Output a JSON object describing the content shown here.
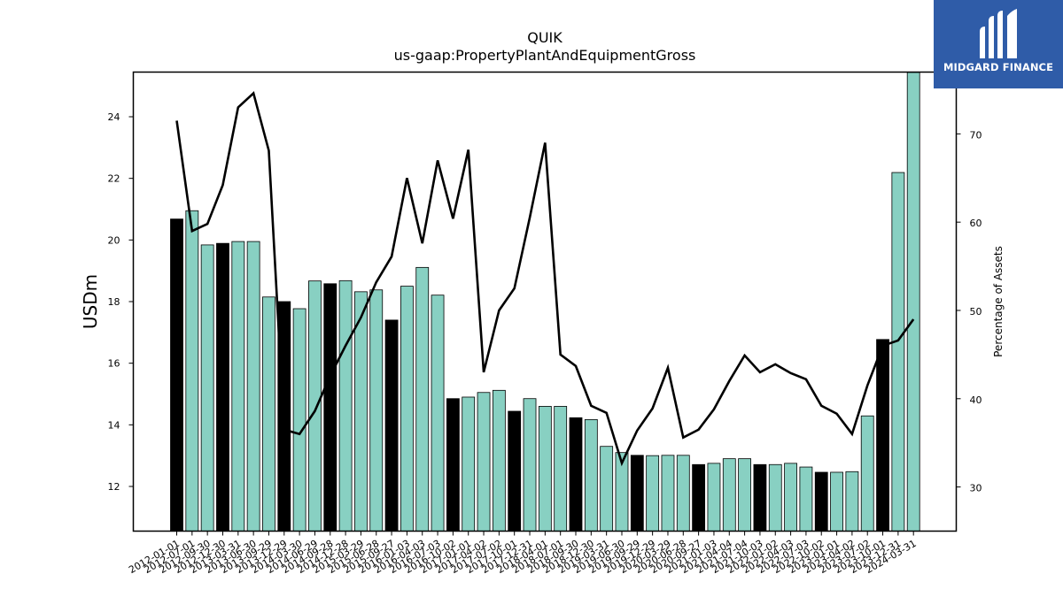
{
  "chart_data": {
    "type": "bar",
    "title": "QUIK",
    "subtitle": "us-gaap:PropertyPlantAndEquipmentGross",
    "ylabel": "USDm",
    "y2label": "Percentage of Assets",
    "ylim": [
      10.55,
      25.45
    ],
    "y2lim": [
      25,
      77
    ],
    "yticks": [
      12,
      14,
      16,
      18,
      20,
      22,
      24
    ],
    "y2ticks": [
      30,
      40,
      50,
      60,
      70
    ],
    "categories": [
      "2012-01-01",
      "2012-07-01",
      "2012-09-30",
      "2012-12-30",
      "2013-03-31",
      "2013-06-30",
      "2013-09-29",
      "2013-12-29",
      "2014-03-30",
      "2014-06-29",
      "2014-09-28",
      "2014-12-28",
      "2015-03-29",
      "2015-06-28",
      "2015-09-27",
      "2016-01-03",
      "2016-04-03",
      "2016-07-03",
      "2016-10-02",
      "2017-01-01",
      "2017-04-02",
      "2017-07-02",
      "2017-10-01",
      "2017-12-31",
      "2018-04-01",
      "2018-07-01",
      "2018-09-30",
      "2018-12-30",
      "2019-03-31",
      "2019-06-30",
      "2019-09-29",
      "2019-12-29",
      "2020-03-29",
      "2020-06-28",
      "2020-09-27",
      "2021-01-03",
      "2021-04-04",
      "2021-07-04",
      "2021-10-03",
      "2022-01-02",
      "2022-04-03",
      "2022-07-03",
      "2022-10-02",
      "2023-01-01",
      "2023-04-02",
      "2023-07-02",
      "2023-10-01",
      "2023-12-31",
      "2024-03-31"
    ],
    "series": [
      {
        "values": [
          20.68,
          20.95,
          19.84,
          19.89,
          19.95,
          19.95,
          18.15,
          18.0,
          17.77,
          18.67,
          18.58,
          18.68,
          18.32,
          18.38,
          17.4,
          18.5,
          19.11,
          18.21,
          14.85,
          14.9,
          15.05,
          15.12,
          14.44,
          14.85,
          14.6,
          14.6,
          14.23,
          14.17,
          13.3,
          13.1,
          13.01,
          13.0,
          13.01,
          13.01,
          12.71,
          12.75,
          12.9,
          12.9,
          12.71,
          12.71,
          12.75,
          12.63,
          12.46,
          12.46,
          12.48,
          14.29,
          16.77,
          22.19,
          25.44
        ]
      },
      {
        "values": [
          71.5,
          59.0,
          59.8,
          64.2,
          73.0,
          74.6,
          68.1,
          36.5,
          36.0,
          38.6,
          42.6,
          46.0,
          49.2,
          53.2,
          56.1,
          65.0,
          57.6,
          67.0,
          60.4,
          68.2,
          43.0,
          50.0,
          52.5,
          60.5,
          69.0,
          45.0,
          43.7,
          39.2,
          38.4,
          32.7,
          36.4,
          38.9,
          43.5,
          35.6,
          36.5,
          38.8,
          42.0,
          44.9,
          43.0,
          43.9,
          42.9,
          42.2,
          39.2,
          38.3,
          36.0,
          41.5,
          46.0,
          46.6,
          49.0
        ]
      }
    ],
    "highlight_indices": [
      0,
      3,
      7,
      10,
      14,
      18,
      22,
      26,
      30,
      34,
      38,
      42,
      46
    ],
    "colors": {
      "bar": "#88d0c2",
      "bar_highlight": "#000000",
      "line": "#000000",
      "logo_bg": "#2f5ca8"
    }
  },
  "logo": {
    "text": "MIDGARD FINANCE",
    "icon": "midgard-logo-icon"
  }
}
